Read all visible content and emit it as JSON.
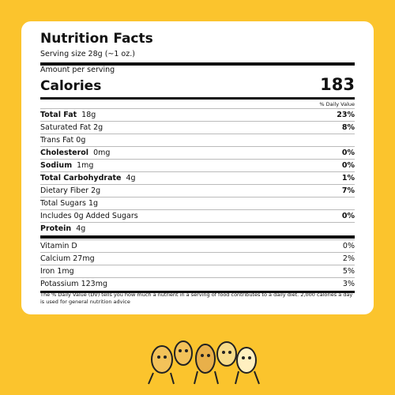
{
  "header": {
    "title": "Nutrition Facts",
    "serving": "Serving size 28g (~1 oz.)",
    "amount_per_serving": "Amount per serving",
    "calories_label": "Calories",
    "calories": 183,
    "dv_heading": "% Daily Value"
  },
  "rows": [
    {
      "name": "Total Fat",
      "amount": "18g",
      "dv": "23%",
      "bold": true
    },
    {
      "name": "Saturated Fat 2g",
      "dv": "8%"
    },
    {
      "name": "Trans Fat 0g"
    },
    {
      "name": "Cholesterol",
      "amount": "0mg",
      "dv": "0%",
      "bold": true
    },
    {
      "name": "Sodium",
      "amount": "1mg",
      "dv": "0%",
      "bold": true
    },
    {
      "name": "Total Carbohydrate",
      "amount": "4g",
      "dv": "1%",
      "bold": true
    },
    {
      "name": "Dietary Fiber 2g",
      "dv": "7%"
    },
    {
      "name": "Total Sugars 1g"
    },
    {
      "name": "Includes 0g Added Sugars",
      "dv": "0%"
    },
    {
      "name": "Protein",
      "amount": "4g",
      "bold": true
    }
  ],
  "vitamins": [
    {
      "name": "Vitamin D",
      "dv": "0%"
    },
    {
      "name": "Calcium 27mg",
      "dv": "2%"
    },
    {
      "name": "Iron 1mg",
      "dv": "5%"
    },
    {
      "name": "Potassium 123mg",
      "dv": "3%"
    }
  ],
  "footnote": "The % Daily Value (DV) tells you how much a nutrient in a serving of food contributes to a daily diet. 2,000 calories a day is used for general nutrition advice"
}
